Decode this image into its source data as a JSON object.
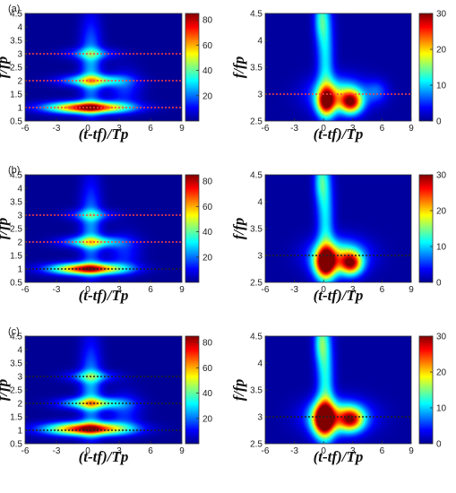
{
  "figure": {
    "x_axis_label": "(t-tf)/Tp",
    "y_axis_label": "f/fp"
  },
  "colorscale": [
    "#00008f",
    "#0000ff",
    "#0080ff",
    "#00ffff",
    "#80ff80",
    "#ffff00",
    "#ff8000",
    "#ff0000",
    "#800000"
  ],
  "chart_data": [
    {
      "type": "heatmap",
      "panel_label": "(a)",
      "row": 0,
      "col": 0,
      "xlim": [
        -6,
        9
      ],
      "ylim": [
        0.5,
        4.5
      ],
      "xticks": [
        "-6",
        "-3",
        "0",
        "3",
        "6",
        "9"
      ],
      "yticks": [
        "0.5",
        "1",
        "1.5",
        "2",
        "2.5",
        "3",
        "3.5",
        "4",
        "4.5"
      ],
      "colorbar": {
        "range": [
          0,
          85
        ],
        "ticks": [
          "20",
          "40",
          "60",
          "80"
        ]
      },
      "reference_lines": [
        {
          "y": 1,
          "color": "#ff4040",
          "style": "dotted"
        },
        {
          "y": 2,
          "color": "#ff4040",
          "style": "dotted"
        },
        {
          "y": 3,
          "color": "#ff4040",
          "style": "dotted"
        }
      ],
      "features": [
        {
          "x": 0,
          "y": 1.0,
          "amp": 82,
          "sx": 2.6,
          "sy": 0.15
        },
        {
          "x": 0.5,
          "y": 2.0,
          "amp": 42,
          "sx": 2.0,
          "sy": 0.15
        },
        {
          "x": 0.3,
          "y": 3.0,
          "amp": 22,
          "sx": 1.6,
          "sy": 0.15
        },
        {
          "x": 0.3,
          "y": 2.5,
          "amp": 24,
          "sx": 0.7,
          "sy": 1.3
        },
        {
          "x": 3.5,
          "y": 1.7,
          "amp": 14,
          "sx": 1.1,
          "sy": 0.5
        }
      ]
    },
    {
      "type": "heatmap",
      "panel_label": "",
      "row": 0,
      "col": 1,
      "xlim": [
        -6,
        9
      ],
      "ylim": [
        2.5,
        4.5
      ],
      "xticks": [
        "-6",
        "-3",
        "0",
        "3",
        "6",
        "9"
      ],
      "yticks": [
        "2.5",
        "3",
        "3.5",
        "4",
        "4.5"
      ],
      "colorbar": {
        "range": [
          0,
          30
        ],
        "ticks": [
          "0",
          "10",
          "20",
          "30"
        ]
      },
      "reference_lines": [
        {
          "y": 3,
          "color": "#ff4040",
          "style": "dotted"
        }
      ],
      "features": [
        {
          "x": 0.3,
          "y": 2.85,
          "amp": 22,
          "sx": 0.7,
          "sy": 0.18
        },
        {
          "x": 2.8,
          "y": 2.85,
          "amp": 24,
          "sx": 0.8,
          "sy": 0.15
        },
        {
          "x": 1.5,
          "y": 3.0,
          "amp": 12,
          "sx": 2.0,
          "sy": 0.22
        },
        {
          "x": 0.2,
          "y": 3.7,
          "amp": 10,
          "sx": 0.6,
          "sy": 0.8
        },
        {
          "x": -0.3,
          "y": 4.4,
          "amp": 8,
          "sx": 0.5,
          "sy": 0.3
        },
        {
          "x": 5.5,
          "y": 3.05,
          "amp": 5,
          "sx": 0.8,
          "sy": 0.15
        }
      ]
    },
    {
      "type": "heatmap",
      "panel_label": "(b)",
      "row": 1,
      "col": 0,
      "xlim": [
        -6,
        9
      ],
      "ylim": [
        0.5,
        4.5
      ],
      "xticks": [
        "-6",
        "-3",
        "0",
        "3",
        "6",
        "9"
      ],
      "yticks": [
        "0.5",
        "1",
        "1.5",
        "2",
        "2.5",
        "3",
        "3.5",
        "4",
        "4.5"
      ],
      "colorbar": {
        "range": [
          0,
          85
        ],
        "ticks": [
          "20",
          "40",
          "60",
          "80"
        ]
      },
      "reference_lines": [
        {
          "y": 1,
          "color": "#222222",
          "style": "dotted"
        },
        {
          "y": 2,
          "color": "#ff4040",
          "style": "dotted"
        },
        {
          "y": 3,
          "color": "#ff4040",
          "style": "dotted"
        }
      ],
      "features": [
        {
          "x": 0,
          "y": 1.0,
          "amp": 78,
          "sx": 2.4,
          "sy": 0.15
        },
        {
          "x": 0.4,
          "y": 2.0,
          "amp": 38,
          "sx": 1.9,
          "sy": 0.15
        },
        {
          "x": 0.3,
          "y": 3.0,
          "amp": 20,
          "sx": 1.5,
          "sy": 0.15
        },
        {
          "x": 0.3,
          "y": 2.5,
          "amp": 22,
          "sx": 0.7,
          "sy": 1.3
        },
        {
          "x": 3.5,
          "y": 1.6,
          "amp": 13,
          "sx": 1.1,
          "sy": 0.5
        }
      ]
    },
    {
      "type": "heatmap",
      "panel_label": "",
      "row": 1,
      "col": 1,
      "xlim": [
        -6,
        9
      ],
      "ylim": [
        2.5,
        4.5
      ],
      "xticks": [
        "-6",
        "-3",
        "0",
        "3",
        "6",
        "9"
      ],
      "yticks": [
        "2.5",
        "3",
        "3.5",
        "4",
        "4.5"
      ],
      "colorbar": {
        "range": [
          0,
          30
        ],
        "ticks": [
          "0",
          "10",
          "20",
          "30"
        ]
      },
      "reference_lines": [
        {
          "y": 3,
          "color": "#222222",
          "style": "dotted"
        }
      ],
      "features": [
        {
          "x": 0.2,
          "y": 2.85,
          "amp": 27,
          "sx": 0.8,
          "sy": 0.2
        },
        {
          "x": 2.8,
          "y": 2.85,
          "amp": 23,
          "sx": 0.8,
          "sy": 0.15
        },
        {
          "x": 1.5,
          "y": 3.0,
          "amp": 13,
          "sx": 2.0,
          "sy": 0.22
        },
        {
          "x": 0.2,
          "y": 3.7,
          "amp": 10,
          "sx": 0.6,
          "sy": 0.8
        },
        {
          "x": -0.3,
          "y": 4.4,
          "amp": 8,
          "sx": 0.5,
          "sy": 0.3
        }
      ]
    },
    {
      "type": "heatmap",
      "panel_label": "(c)",
      "row": 2,
      "col": 0,
      "xlim": [
        -6,
        9
      ],
      "ylim": [
        0.5,
        4.5
      ],
      "xticks": [
        "-6",
        "-3",
        "0",
        "3",
        "6",
        "9"
      ],
      "yticks": [
        "0.5",
        "1",
        "1.5",
        "2",
        "2.5",
        "3",
        "3.5",
        "4",
        "4.5"
      ],
      "colorbar": {
        "range": [
          0,
          85
        ],
        "ticks": [
          "20",
          "40",
          "60",
          "80"
        ]
      },
      "reference_lines": [
        {
          "y": 1,
          "color": "#222222",
          "style": "dotted"
        },
        {
          "y": 2,
          "color": "#222222",
          "style": "dotted"
        },
        {
          "y": 3,
          "color": "#222222",
          "style": "dotted"
        }
      ],
      "features": [
        {
          "x": 0,
          "y": 1.05,
          "amp": 80,
          "sx": 2.7,
          "sy": 0.17
        },
        {
          "x": 0.4,
          "y": 2.0,
          "amp": 44,
          "sx": 2.0,
          "sy": 0.15
        },
        {
          "x": 0.3,
          "y": 3.0,
          "amp": 24,
          "sx": 1.6,
          "sy": 0.15
        },
        {
          "x": 0.3,
          "y": 2.5,
          "amp": 24,
          "sx": 0.7,
          "sy": 1.3
        },
        {
          "x": 3.5,
          "y": 1.7,
          "amp": 14,
          "sx": 1.1,
          "sy": 0.5
        }
      ]
    },
    {
      "type": "heatmap",
      "panel_label": "",
      "row": 2,
      "col": 1,
      "xlim": [
        -6,
        9
      ],
      "ylim": [
        2.5,
        4.5
      ],
      "xticks": [
        "-6",
        "-3",
        "0",
        "3",
        "6",
        "9"
      ],
      "yticks": [
        "2.5",
        "3",
        "3.5",
        "4",
        "4.5"
      ],
      "colorbar": {
        "range": [
          0,
          30
        ],
        "ticks": [
          "0",
          "10",
          "20",
          "30"
        ]
      },
      "reference_lines": [
        {
          "y": 3,
          "color": "#222222",
          "style": "dotted"
        }
      ],
      "features": [
        {
          "x": 0.0,
          "y": 2.95,
          "amp": 28,
          "sx": 0.8,
          "sy": 0.22
        },
        {
          "x": 2.8,
          "y": 2.95,
          "amp": 20,
          "sx": 0.9,
          "sy": 0.15
        },
        {
          "x": 1.5,
          "y": 3.0,
          "amp": 13,
          "sx": 2.2,
          "sy": 0.22
        },
        {
          "x": 0.2,
          "y": 3.7,
          "amp": 11,
          "sx": 0.6,
          "sy": 0.8
        },
        {
          "x": -0.3,
          "y": 4.4,
          "amp": 9,
          "sx": 0.5,
          "sy": 0.3
        }
      ]
    }
  ]
}
